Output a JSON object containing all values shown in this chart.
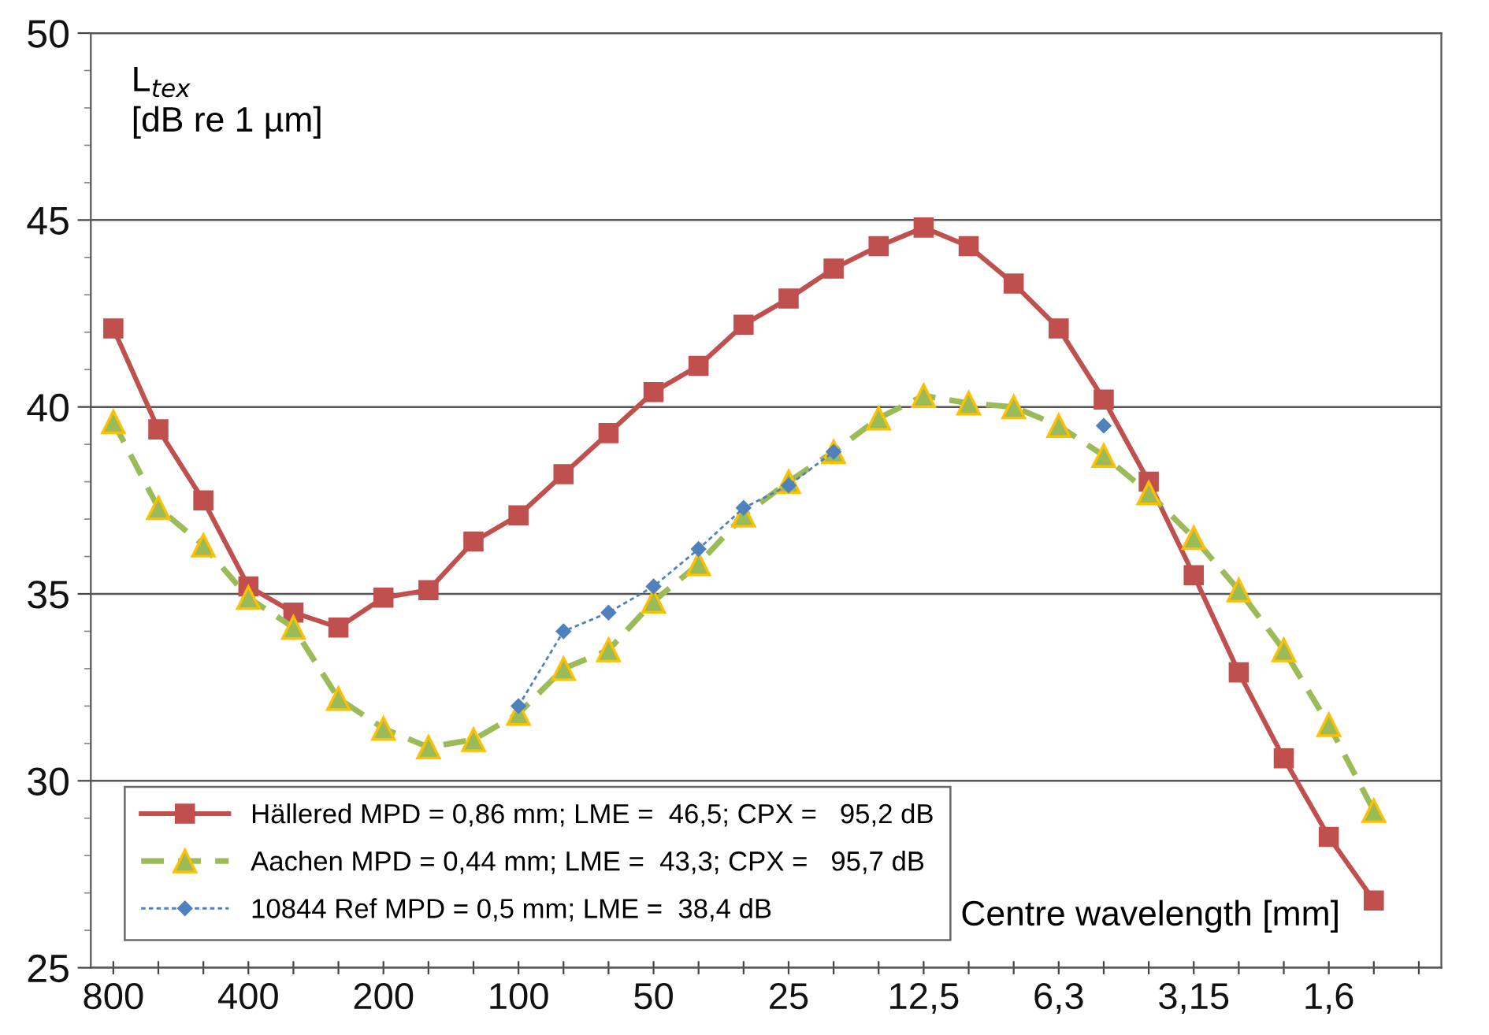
{
  "chart_data": {
    "type": "line",
    "ylabel": "L$_{tex}$\n[dB re 1 µm]",
    "xlabel": "Centre wavelength [mm]",
    "categories": [
      "800",
      null,
      null,
      "400",
      null,
      null,
      "200",
      null,
      null,
      "100",
      null,
      null,
      "50",
      null,
      null,
      "25",
      null,
      null,
      "12,5",
      null,
      null,
      "6,3",
      null,
      null,
      "3,15",
      null,
      null,
      "1,6",
      null,
      null
    ],
    "ylim": [
      25,
      50
    ],
    "yticks": [
      25,
      30,
      35,
      40,
      45,
      50
    ],
    "grid": "y",
    "legend": "bottom left",
    "series": [
      {
        "name": "Hällered MPD = 0,86 mm; LME =  46,5; CPX =   95,2 dB",
        "color": "#c0504d",
        "marker": "square",
        "line_style": "solid",
        "values": [
          42.1,
          39.4,
          37.5,
          35.2,
          34.5,
          34.1,
          34.9,
          35.1,
          36.4,
          37.1,
          38.2,
          39.3,
          40.4,
          41.1,
          42.2,
          42.9,
          43.7,
          44.3,
          44.8,
          44.3,
          43.3,
          42.1,
          40.2,
          38.0,
          35.5,
          32.9,
          30.6,
          28.5,
          26.8,
          null
        ]
      },
      {
        "name": "Aachen MPD = 0,44 mm; LME =  43,3; CPX =   95,7 dB",
        "color": "#9bbb59",
        "marker": "triangle",
        "line_style": "dashed",
        "values": [
          39.6,
          37.3,
          36.3,
          34.9,
          34.1,
          32.2,
          31.4,
          30.9,
          31.1,
          31.8,
          33.0,
          33.5,
          34.8,
          35.8,
          37.1,
          38.0,
          38.8,
          39.7,
          40.3,
          40.1,
          40.0,
          39.5,
          38.7,
          37.7,
          36.5,
          35.1,
          33.5,
          31.5,
          29.2,
          null
        ]
      },
      {
        "name": "10844 Ref MPD = 0,5 mm; LME =  38,4 dB",
        "color": "#4f81bd",
        "marker": "diamond",
        "line_style": "dotted",
        "values": [
          null,
          null,
          null,
          null,
          null,
          null,
          null,
          null,
          null,
          32.0,
          34.0,
          34.5,
          35.2,
          36.2,
          37.3,
          37.9,
          38.8,
          null,
          null,
          null,
          null,
          null,
          39.5,
          null,
          null,
          null,
          null,
          null,
          null,
          null
        ]
      }
    ]
  }
}
